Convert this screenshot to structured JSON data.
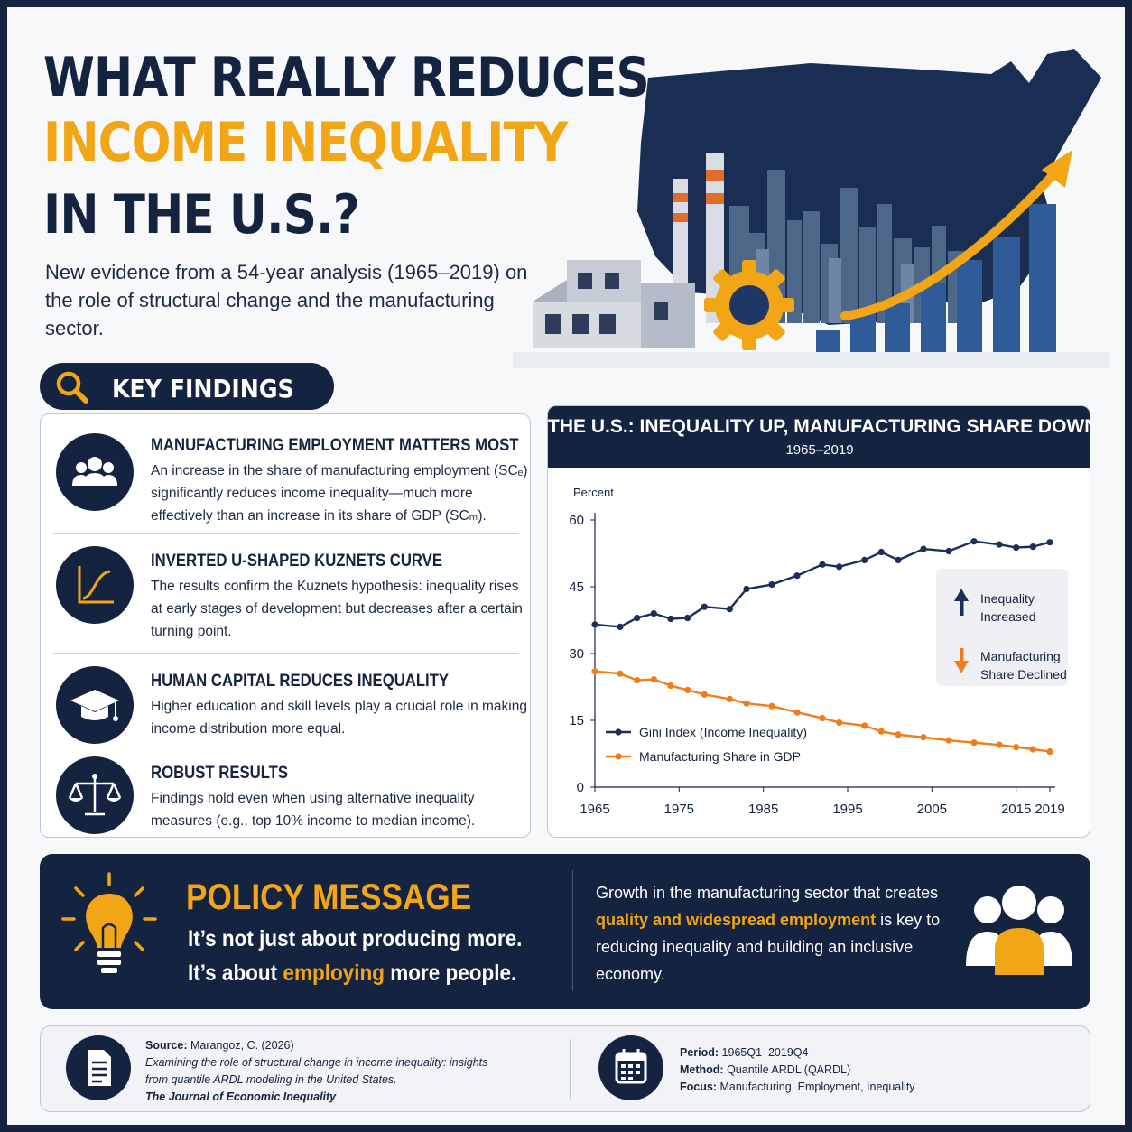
{
  "header": {
    "title_line1": "WHAT REALLY REDUCES",
    "title_line2": "INCOME INEQUALITY",
    "title_line3": "IN THE U.S.?",
    "subtitle": "New evidence from a 54-year analysis (1965–2019) on the role of structural change and the manufacturing sector."
  },
  "key_findings": {
    "label": "KEY FINDINGS",
    "items": [
      {
        "icon": "people-icon",
        "title": "MANUFACTURING EMPLOYMENT MATTERS MOST",
        "body": "An increase in the share of manufacturing employment (SCₑ) significantly reduces income inequality—much more effectively than an increase in its share of GDP (SCₘ)."
      },
      {
        "icon": "curve-chart-icon",
        "title": "INVERTED U-SHAPED KUZNETS CURVE",
        "body": "The results confirm the Kuznets hypothesis: inequality rises at early stages of development but decreases after a certain turning point."
      },
      {
        "icon": "graduation-cap-icon",
        "title": "HUMAN CAPITAL REDUCES INEQUALITY",
        "body": "Higher education and skill levels play a crucial role in making income distribution more equal."
      },
      {
        "icon": "scales-icon",
        "title": "ROBUST RESULTS",
        "body": "Findings hold even when using alternative inequality measures (e.g., top 10% income to median income)."
      }
    ]
  },
  "chart_data": {
    "type": "line",
    "title": "THE U.S.: INEQUALITY UP, MANUFACTURING SHARE DOWN",
    "subtitle": "1965–2019",
    "ylabel": "Percent",
    "ylim": [
      0,
      60
    ],
    "yticks": [
      0,
      15,
      30,
      45,
      60
    ],
    "xlim": [
      1965,
      2019
    ],
    "xticks": [
      1965,
      1975,
      1985,
      1995,
      2005,
      2015,
      2019
    ],
    "grid": false,
    "legend_position": "bottom-left",
    "colors": {
      "gini": "#1b2e5c",
      "manufacturing": "#f07d1a"
    },
    "series": [
      {
        "name": "Gini Index (Income Inequality)",
        "x": [
          1965,
          1968,
          1970,
          1972,
          1974,
          1976,
          1978,
          1981,
          1983,
          1986,
          1989,
          1992,
          1994,
          1997,
          1999,
          2001,
          2004,
          2007,
          2010,
          2013,
          2015,
          2017,
          2019
        ],
        "y": [
          36.5,
          36.0,
          38.0,
          39.0,
          37.8,
          38.0,
          40.5,
          40.0,
          44.5,
          45.5,
          47.5,
          50.0,
          49.5,
          51.0,
          52.8,
          51.0,
          53.5,
          53.0,
          55.2,
          54.5,
          53.8,
          54.0,
          55.0
        ]
      },
      {
        "name": "Manufacturing Share in GDP",
        "x": [
          1965,
          1968,
          1970,
          1972,
          1974,
          1976,
          1978,
          1981,
          1983,
          1986,
          1989,
          1992,
          1994,
          1997,
          1999,
          2001,
          2004,
          2007,
          2010,
          2013,
          2015,
          2017,
          2019
        ],
        "y": [
          26.0,
          25.5,
          24.0,
          24.2,
          22.8,
          21.8,
          20.8,
          19.8,
          18.8,
          18.2,
          16.8,
          15.5,
          14.5,
          13.8,
          12.5,
          11.8,
          11.2,
          10.5,
          10.0,
          9.5,
          9.0,
          8.5,
          8.0
        ]
      }
    ],
    "annotations": {
      "up_label_1": "Inequality",
      "up_label_2": "Increased",
      "down_label_1": "Manufacturing",
      "down_label_2": "Share Declined"
    }
  },
  "policy": {
    "title": "POLICY MESSAGE",
    "line1": "It’s not just about producing more.",
    "line2_pre": "It’s about ",
    "line2_hl": "employing",
    "line2_post": " more people.",
    "msg_pre": "Growth in the manufacturing sector that creates ",
    "msg_hl": "quality and widespread employment",
    "msg_post": " is key to reducing inequality and building an inclusive economy."
  },
  "footer": {
    "source_label": "Source:",
    "source_author": " Marangoz, C. (2026)",
    "source_title": "Examining the role of structural change in income inequality: insights from quantile ARDL modeling in the United States.",
    "source_journal": "The Journal of Economic Inequality",
    "period_label": "Period:",
    "period_value": " 1965Q1–2019Q4",
    "method_label": "Method:",
    "method_value": " Quantile ARDL (QARDL)",
    "focus_label": "Focus:",
    "focus_value": " Manufacturing, Employment, Inequality"
  },
  "colors": {
    "navy": "#142340",
    "accent": "#f2a515",
    "gini_line": "#1b2e5c",
    "manufacturing_line": "#f07d1a"
  }
}
